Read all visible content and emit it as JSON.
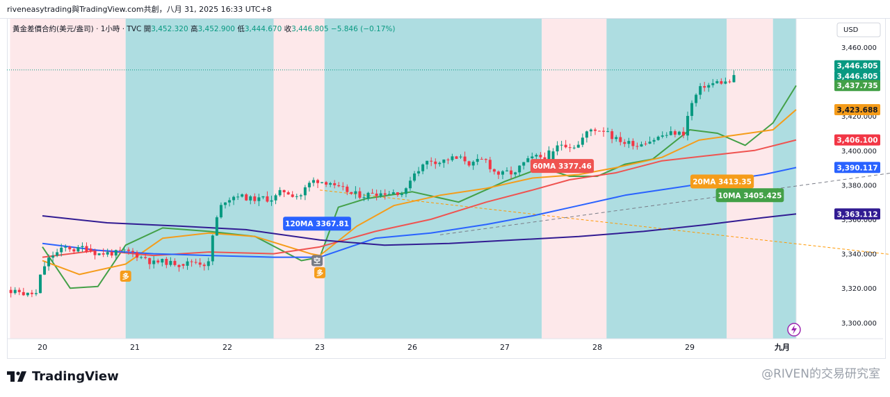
{
  "header": {
    "title": "riveneasytrading與TradingView.com共創，八月 31, 2025 16:33 UTC+8"
  },
  "legend": {
    "symbol": "黃金差價合約(美元/盎司) · 1小時 · TVC",
    "o_label": "開",
    "o_value": "3,452.320",
    "h_label": "高",
    "h_value": "3,452.900",
    "l_label": "低",
    "l_value": "3,444.670",
    "c_label": "收",
    "c_value": "3,446.805",
    "change": "−5.846 (−0.17%)"
  },
  "footer": {
    "brand": "TradingView",
    "watermark": "@RIVEN的交易研究室"
  },
  "colors": {
    "bull": "#089981",
    "bear": "#f23645",
    "zone_pink": "#fde8ea",
    "zone_teal": "#aedde1",
    "ma10": "#43a047",
    "ma20": "#f59c1a",
    "ma60": "#ef5350",
    "ma120": "#2962ff",
    "ma_long": "#311b92",
    "dash_orange": "#ff9800"
  },
  "chart_data": {
    "type": "candlestick",
    "currency": "USD",
    "y_ticks": [
      "3,460.000",
      "3,440.000",
      "3,420.000",
      "3,400.000",
      "3,380.000",
      "3,360.000",
      "3,340.000",
      "3,320.000",
      "3,300.000"
    ],
    "y_tick_values": [
      3460,
      3440,
      3420,
      3400,
      3380,
      3360,
      3340,
      3320,
      3300
    ],
    "ylim": [
      3290,
      3469
    ],
    "x_labels": [
      {
        "label": "20",
        "day": 0
      },
      {
        "label": "21",
        "day": 1
      },
      {
        "label": "22",
        "day": 2
      },
      {
        "label": "23",
        "day": 3
      },
      {
        "label": "26",
        "day": 4
      },
      {
        "label": "27",
        "day": 5
      },
      {
        "label": "28",
        "day": 6
      },
      {
        "label": "29",
        "day": 7
      },
      {
        "label": "九月",
        "day": 8
      }
    ],
    "zones": [
      {
        "from": -0.35,
        "to": 0.9,
        "color": "pink"
      },
      {
        "from": 0.9,
        "to": 2.5,
        "color": "teal"
      },
      {
        "from": 2.5,
        "to": 3.05,
        "color": "pink"
      },
      {
        "from": 3.05,
        "to": 5.4,
        "color": "teal"
      },
      {
        "from": 5.4,
        "to": 6.1,
        "color": "pink"
      },
      {
        "from": 6.1,
        "to": 7.4,
        "color": "teal"
      },
      {
        "from": 7.4,
        "to": 7.9,
        "color": "pink"
      },
      {
        "from": 7.9,
        "to": 8.15,
        "color": "teal"
      }
    ],
    "price_line": 3446.805,
    "price_tags": [
      {
        "value": 3446.805,
        "label": "3,446.805",
        "color": "#089981",
        "text_color": "#ffffff",
        "offset": -6
      },
      {
        "value": 3446.805,
        "label": "3,446.805",
        "color": "#089981",
        "text_color": "#ffffff",
        "offset": 9
      },
      {
        "value": 3437.735,
        "label": "3,437.735",
        "color": "#43a047",
        "text_color": "#ffffff",
        "offset": 0
      },
      {
        "value": 3423.688,
        "label": "3,423.688",
        "color": "#f59c1a",
        "text_color": "#131722",
        "offset": 0
      },
      {
        "value": 3406.1,
        "label": "3,406.100",
        "color": "#f23645",
        "text_color": "#ffffff",
        "offset": 0
      },
      {
        "value": 3390.117,
        "label": "3,390.117",
        "color": "#2962ff",
        "text_color": "#ffffff",
        "offset": 0
      },
      {
        "value": 3363.112,
        "label": "3,363.112",
        "color": "#311b92",
        "text_color": "#ffffff",
        "offset": 0
      }
    ],
    "annotations": [
      {
        "text": "120MA 3367.81",
        "color": "#2962ff",
        "day": 2.97,
        "price": 3357.5
      },
      {
        "text": "60MA 3377.46",
        "color": "#ef5350",
        "day": 5.62,
        "price": 3391
      },
      {
        "text": "20MA 3413.35",
        "color": "#f59c1a",
        "day": 7.35,
        "price": 3382
      },
      {
        "text": "10MA 3405.425",
        "color": "#43a047",
        "day": 7.65,
        "price": 3374
      }
    ],
    "markers": [
      {
        "text": "多",
        "day": 0.9,
        "price": 3327,
        "color": "#f59c1a"
      },
      {
        "text": "多",
        "day": 3.0,
        "price": 3329,
        "color": "#f59c1a"
      },
      {
        "text": "空",
        "day": 2.97,
        "price": 3336,
        "color": "#787b86"
      }
    ],
    "candles_daily": [
      [
        3336,
        3338,
        3312,
        3316
      ],
      [
        3316,
        3345,
        3314,
        3343
      ],
      [
        3343,
        3351,
        3336,
        3341
      ],
      [
        3341,
        3346,
        3336,
        3338
      ],
      [
        3338,
        3343,
        3330,
        3334
      ],
      [
        3334,
        3340,
        3328,
        3336
      ],
      [
        3336,
        3380,
        3324,
        3378
      ],
      [
        3378,
        3389,
        3366,
        3371
      ],
      [
        3371,
        3385,
        3362,
        3376
      ],
      [
        3376,
        3388,
        3362,
        3384
      ],
      [
        3384,
        3395,
        3368,
        3372
      ],
      [
        3372,
        3382,
        3364,
        3378
      ],
      [
        3378,
        3399,
        3370,
        3396
      ],
      [
        3396,
        3401,
        3386,
        3392
      ],
      [
        3392,
        3398,
        3382,
        3385
      ],
      [
        3385,
        3398,
        3380,
        3394
      ],
      [
        3394,
        3410,
        3388,
        3406
      ],
      [
        3406,
        3422,
        3402,
        3414
      ],
      [
        3414,
        3418,
        3400,
        3404
      ],
      [
        3404,
        3412,
        3400,
        3410
      ],
      [
        3410,
        3443,
        3406,
        3440
      ],
      [
        3440,
        3452,
        3436,
        3446
      ]
    ],
    "ma_lines": {
      "ma10": [
        [
          0,
          3344
        ],
        [
          0.3,
          3320
        ],
        [
          0.6,
          3321
        ],
        [
          0.9,
          3345
        ],
        [
          1.3,
          3355
        ],
        [
          1.8,
          3353
        ],
        [
          2.3,
          3350
        ],
        [
          2.8,
          3336
        ],
        [
          3.0,
          3338
        ],
        [
          3.2,
          3367
        ],
        [
          3.5,
          3372
        ],
        [
          4.0,
          3376
        ],
        [
          4.5,
          3370
        ],
        [
          5.0,
          3382
        ],
        [
          5.4,
          3390
        ],
        [
          5.7,
          3385
        ],
        [
          6.0,
          3385
        ],
        [
          6.3,
          3392
        ],
        [
          6.6,
          3395
        ],
        [
          7.0,
          3412
        ],
        [
          7.3,
          3410
        ],
        [
          7.6,
          3403
        ],
        [
          7.9,
          3416
        ],
        [
          8.15,
          3437.7
        ]
      ],
      "ma20": [
        [
          0,
          3336
        ],
        [
          0.4,
          3328
        ],
        [
          0.9,
          3334
        ],
        [
          1.3,
          3349
        ],
        [
          1.8,
          3352
        ],
        [
          2.3,
          3350
        ],
        [
          2.9,
          3340
        ],
        [
          3.0,
          3339
        ],
        [
          3.4,
          3356
        ],
        [
          3.8,
          3368
        ],
        [
          4.3,
          3374
        ],
        [
          4.8,
          3378
        ],
        [
          5.3,
          3384
        ],
        [
          5.8,
          3386
        ],
        [
          6.2,
          3390
        ],
        [
          6.7,
          3396
        ],
        [
          7.1,
          3406
        ],
        [
          7.5,
          3409
        ],
        [
          7.9,
          3412
        ],
        [
          8.15,
          3423.7
        ]
      ],
      "ma60": [
        [
          0,
          3338
        ],
        [
          0.6,
          3342
        ],
        [
          1.2,
          3339
        ],
        [
          1.8,
          3341
        ],
        [
          2.5,
          3340
        ],
        [
          3.0,
          3344
        ],
        [
          3.6,
          3353
        ],
        [
          4.2,
          3360
        ],
        [
          4.8,
          3370
        ],
        [
          5.3,
          3377
        ],
        [
          5.7,
          3383
        ],
        [
          6.2,
          3387
        ],
        [
          6.7,
          3394
        ],
        [
          7.2,
          3397
        ],
        [
          7.7,
          3400
        ],
        [
          8.15,
          3406.1
        ]
      ],
      "ma120": [
        [
          0,
          3346
        ],
        [
          0.6,
          3342
        ],
        [
          1.2,
          3340
        ],
        [
          1.8,
          3339
        ],
        [
          2.5,
          3338
        ],
        [
          3.0,
          3338
        ],
        [
          3.6,
          3349
        ],
        [
          4.2,
          3352
        ],
        [
          4.8,
          3357
        ],
        [
          5.3,
          3362
        ],
        [
          5.8,
          3368
        ],
        [
          6.3,
          3374
        ],
        [
          6.8,
          3378
        ],
        [
          7.3,
          3382
        ],
        [
          7.8,
          3386
        ],
        [
          8.15,
          3390.1
        ]
      ],
      "ma_long": [
        [
          0,
          3362
        ],
        [
          0.7,
          3358
        ],
        [
          1.5,
          3356
        ],
        [
          2.2,
          3354
        ],
        [
          3.0,
          3348
        ],
        [
          3.7,
          3345
        ],
        [
          4.4,
          3346
        ],
        [
          5.1,
          3348
        ],
        [
          5.8,
          3350
        ],
        [
          6.5,
          3353
        ],
        [
          7.2,
          3357
        ],
        [
          7.8,
          3361
        ],
        [
          8.15,
          3363.1
        ]
      ]
    },
    "trendlines": [
      {
        "from": [
          3.0,
          3377
        ],
        "to": [
          9.6,
          3337
        ],
        "color": "#ff9800",
        "dash": "4,3"
      },
      {
        "from": [
          4.3,
          3351
        ],
        "to": [
          9.6,
          3390
        ],
        "color": "#787b86",
        "dash": "5,4"
      }
    ]
  }
}
